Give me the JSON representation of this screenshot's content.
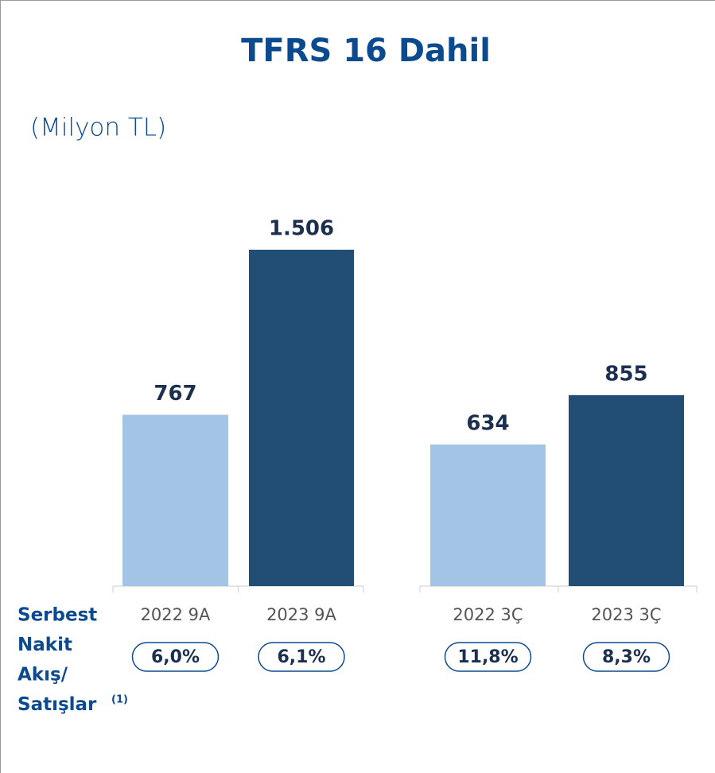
{
  "chart_data": {
    "type": "bar",
    "title": "TFRS 16 Dahil",
    "subtitle": "(Milyon TL)",
    "categories": [
      "2022 9A",
      "2023 9A",
      "2022 3Ç",
      "2023 3Ç"
    ],
    "values": [
      767,
      1506,
      634,
      855
    ],
    "value_labels": [
      "767",
      "1.506",
      "634",
      "855"
    ],
    "colors": [
      "#a3c4e4",
      "#224e76",
      "#a3c4e4",
      "#224e76"
    ],
    "ratio": {
      "label_lines": [
        "Serbest",
        "Nakit",
        "Akış/",
        "Satışlar"
      ],
      "note": "(1)",
      "values": [
        6.0,
        6.1,
        11.8,
        8.3
      ],
      "value_labels": [
        "6,0%",
        "6,1%",
        "11,8%",
        "8,3%"
      ]
    }
  }
}
